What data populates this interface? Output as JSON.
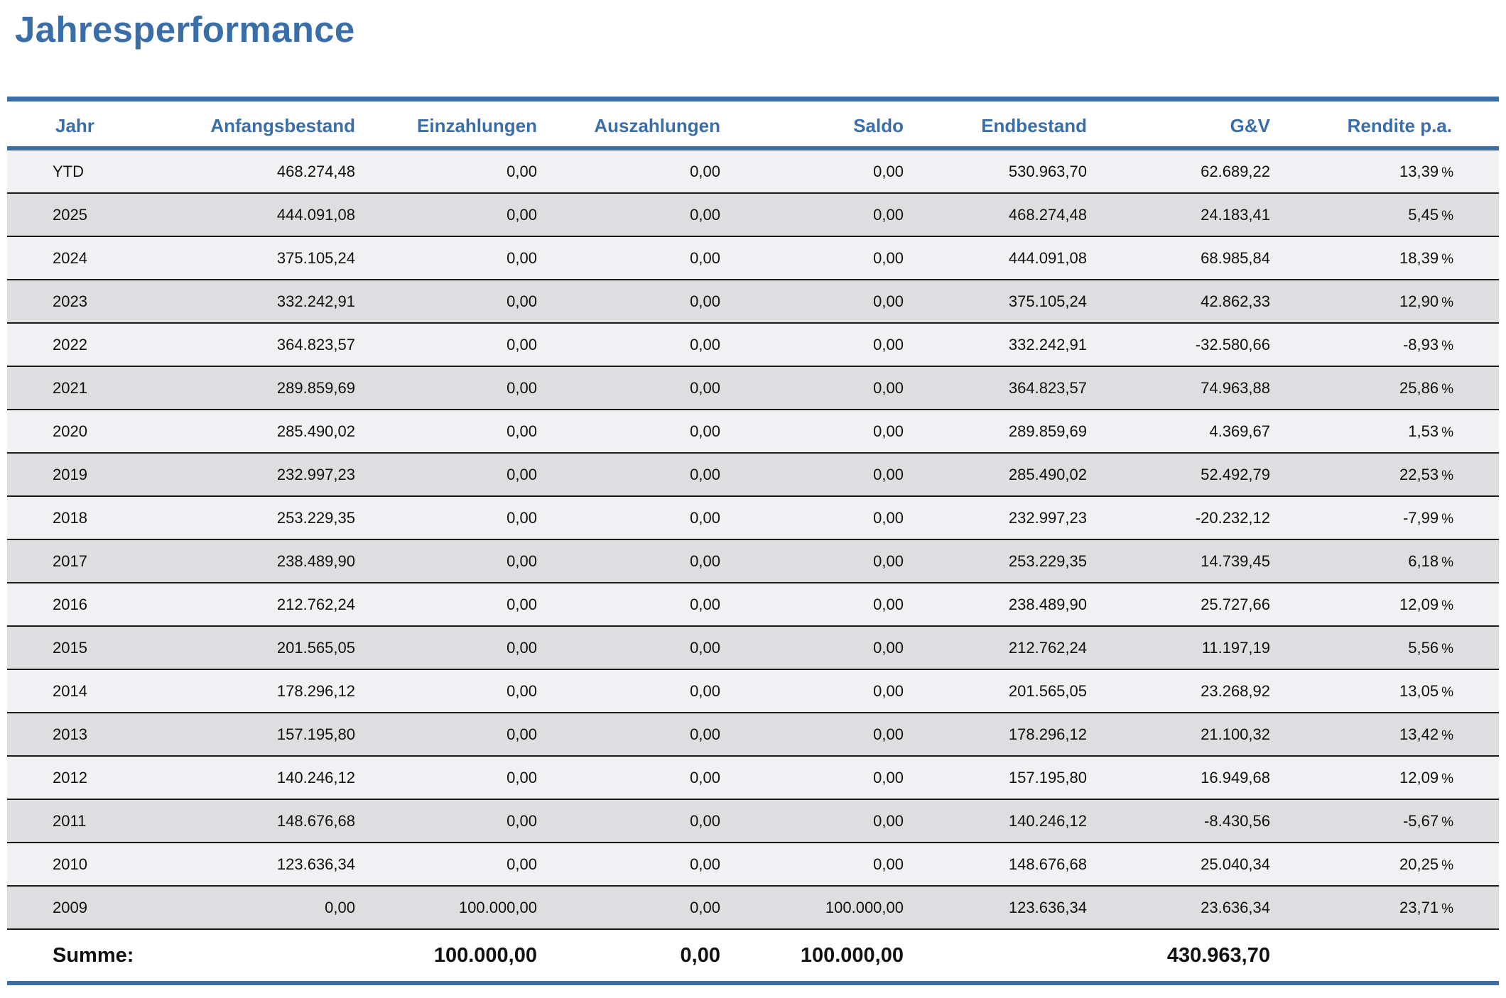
{
  "title": "Jahresperformance",
  "colors": {
    "accent": "#3a6ea8",
    "row_light": "#f1f1f3",
    "row_dark": "#dedee0",
    "text": "#111111"
  },
  "table": {
    "headers": [
      "Jahr",
      "Anfangsbestand",
      "Einzahlungen",
      "Auszahlungen",
      "Saldo",
      "Endbestand",
      "G&V",
      "Rendite p.a."
    ],
    "rows": [
      [
        "YTD",
        "468.274,48",
        "0,00",
        "0,00",
        "0,00",
        "530.963,70",
        "62.689,22",
        "13,39",
        "%"
      ],
      [
        "2025",
        "444.091,08",
        "0,00",
        "0,00",
        "0,00",
        "468.274,48",
        "24.183,41",
        "5,45",
        "%"
      ],
      [
        "2024",
        "375.105,24",
        "0,00",
        "0,00",
        "0,00",
        "444.091,08",
        "68.985,84",
        "18,39",
        "%"
      ],
      [
        "2023",
        "332.242,91",
        "0,00",
        "0,00",
        "0,00",
        "375.105,24",
        "42.862,33",
        "12,90",
        "%"
      ],
      [
        "2022",
        "364.823,57",
        "0,00",
        "0,00",
        "0,00",
        "332.242,91",
        "-32.580,66",
        "-8,93",
        "%"
      ],
      [
        "2021",
        "289.859,69",
        "0,00",
        "0,00",
        "0,00",
        "364.823,57",
        "74.963,88",
        "25,86",
        "%"
      ],
      [
        "2020",
        "285.490,02",
        "0,00",
        "0,00",
        "0,00",
        "289.859,69",
        "4.369,67",
        "1,53",
        "%"
      ],
      [
        "2019",
        "232.997,23",
        "0,00",
        "0,00",
        "0,00",
        "285.490,02",
        "52.492,79",
        "22,53",
        "%"
      ],
      [
        "2018",
        "253.229,35",
        "0,00",
        "0,00",
        "0,00",
        "232.997,23",
        "-20.232,12",
        "-7,99",
        "%"
      ],
      [
        "2017",
        "238.489,90",
        "0,00",
        "0,00",
        "0,00",
        "253.229,35",
        "14.739,45",
        "6,18",
        "%"
      ],
      [
        "2016",
        "212.762,24",
        "0,00",
        "0,00",
        "0,00",
        "238.489,90",
        "25.727,66",
        "12,09",
        "%"
      ],
      [
        "2015",
        "201.565,05",
        "0,00",
        "0,00",
        "0,00",
        "212.762,24",
        "11.197,19",
        "5,56",
        "%"
      ],
      [
        "2014",
        "178.296,12",
        "0,00",
        "0,00",
        "0,00",
        "201.565,05",
        "23.268,92",
        "13,05",
        "%"
      ],
      [
        "2013",
        "157.195,80",
        "0,00",
        "0,00",
        "0,00",
        "178.296,12",
        "21.100,32",
        "13,42",
        "%"
      ],
      [
        "2012",
        "140.246,12",
        "0,00",
        "0,00",
        "0,00",
        "157.195,80",
        "16.949,68",
        "12,09",
        "%"
      ],
      [
        "2011",
        "148.676,68",
        "0,00",
        "0,00",
        "0,00",
        "140.246,12",
        "-8.430,56",
        "-5,67",
        "%"
      ],
      [
        "2010",
        "123.636,34",
        "0,00",
        "0,00",
        "0,00",
        "148.676,68",
        "25.040,34",
        "20,25",
        "%"
      ],
      [
        "2009",
        "0,00",
        "100.000,00",
        "0,00",
        "100.000,00",
        "123.636,34",
        "23.636,34",
        "23,71",
        "%"
      ]
    ],
    "footer": [
      "Summe:",
      "",
      "100.000,00",
      "0,00",
      "100.000,00",
      "",
      "430.963,70",
      ""
    ]
  }
}
